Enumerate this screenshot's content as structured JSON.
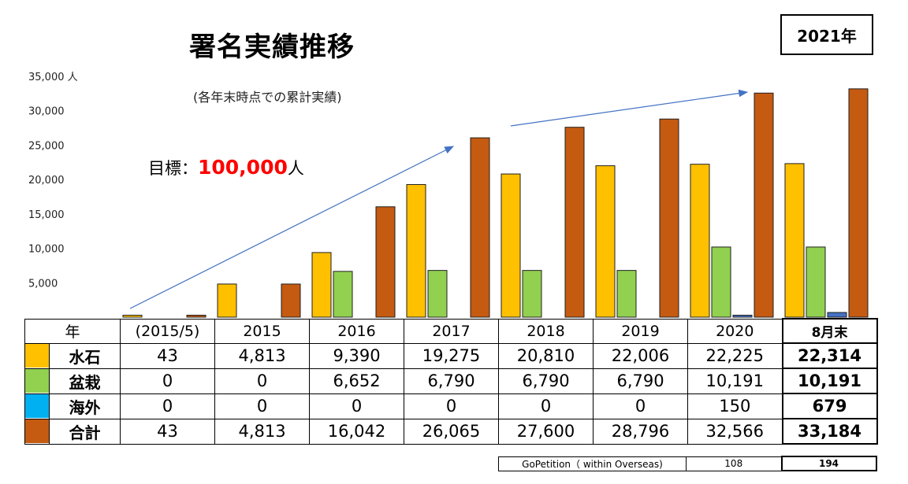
{
  "title": "署名実績推移",
  "subtitle": "(各年末時点での累計実績)",
  "goal": {
    "label": "目標：",
    "value": "100,000",
    "unit": "人"
  },
  "year_badge": "2021年",
  "chart_data": {
    "type": "bar",
    "title": "署名実績推移",
    "subtitle": "(各年末時点での累計実績)",
    "ylim": [
      0,
      35000
    ],
    "yticks": [
      "35,000 人",
      "30,000",
      "25,000",
      "20,000",
      "15,000",
      "10,000",
      "5,000"
    ],
    "ytick_values": [
      35000,
      30000,
      25000,
      20000,
      15000,
      10000,
      5000
    ],
    "categories": [
      "(2015/5)",
      "2015",
      "2016",
      "2017",
      "2018",
      "2019",
      "2020",
      "8月末"
    ],
    "series": [
      {
        "name": "水石",
        "color": "#ffc000",
        "values": [
          43,
          4813,
          9390,
          19275,
          20810,
          22006,
          22225,
          22314
        ]
      },
      {
        "name": "盆栽",
        "color": "#92d050",
        "values": [
          0,
          0,
          6652,
          6790,
          6790,
          6790,
          10191,
          10191
        ]
      },
      {
        "name": "海外",
        "color": "#4472c4",
        "values": [
          0,
          0,
          0,
          0,
          0,
          0,
          150,
          679
        ]
      },
      {
        "name": "合計",
        "color": "#c55a11",
        "values": [
          43,
          4813,
          16042,
          26065,
          27600,
          28796,
          32566,
          33184
        ]
      }
    ],
    "grid": false
  },
  "table": {
    "header_label": "年",
    "columns": [
      "(2015/5)",
      "2015",
      "2016",
      "2017",
      "2018",
      "2019",
      "2020",
      "8月末"
    ],
    "rows": [
      {
        "name": "水石",
        "swatch": "#ffc000",
        "values": [
          "43",
          "4,813",
          "9,390",
          "19,275",
          "20,810",
          "22,006",
          "22,225",
          "22,314"
        ]
      },
      {
        "name": "盆栽",
        "swatch": "#92d050",
        "values": [
          "0",
          "0",
          "6,652",
          "6,790",
          "6,790",
          "6,790",
          "10,191",
          "10,191"
        ]
      },
      {
        "name": "海外",
        "swatch": "#00b0f0",
        "values": [
          "0",
          "0",
          "0",
          "0",
          "0",
          "0",
          "150",
          "679"
        ]
      },
      {
        "name": "合計",
        "swatch": "#c55a11",
        "values": [
          "43",
          "4,813",
          "16,042",
          "26,065",
          "27,600",
          "28,796",
          "32,566",
          "33,184"
        ]
      }
    ]
  },
  "gopetition": {
    "label": "GoPetition（ within Overseas)",
    "value_2020": "108",
    "value_latest": "194"
  }
}
